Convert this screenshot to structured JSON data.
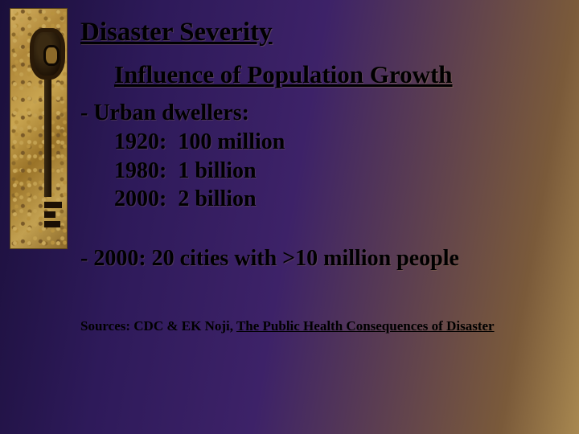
{
  "title": "Disaster Severity",
  "subtitle": "Influence of Population Growth",
  "urban": {
    "lead": "- Urban dwellers:",
    "rows": [
      {
        "year": "1920:",
        "value": "100 million"
      },
      {
        "year": "1980:",
        "value": "1 billion"
      },
      {
        "year": "2000:",
        "value": "2 billion"
      }
    ]
  },
  "second_point": "- 2000:  20 cities with >10 million people",
  "sources_label": "Sources:  CDC & EK Noji, ",
  "sources_book": "The Public Health Consequences of Disaster",
  "colors": {
    "text": "#000000",
    "gradient_start": "#1a0f3a",
    "gradient_end": "#a88850",
    "key_gold": "#c9a550"
  },
  "typography": {
    "title_fontsize_pt": 25,
    "subtitle_fontsize_pt": 23,
    "body_fontsize_pt": 21,
    "sources_fontsize_pt": 13,
    "font_family": "Times New Roman"
  }
}
